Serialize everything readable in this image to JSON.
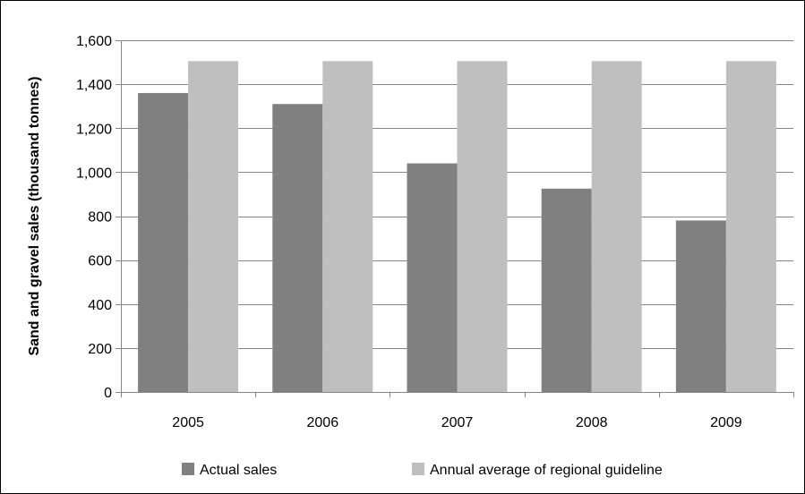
{
  "chart_data": {
    "type": "bar",
    "title": "",
    "xlabel": "",
    "ylabel": "Sand and gravel sales (thousand tonnes)",
    "categories": [
      "2005",
      "2006",
      "2007",
      "2008",
      "2009"
    ],
    "series": [
      {
        "name": "Actual sales",
        "color": "#808080",
        "values": [
          1360,
          1310,
          1040,
          925,
          780
        ]
      },
      {
        "name": "Annual average of regional guideline",
        "color": "#bfbfbf",
        "values": [
          1505,
          1505,
          1505,
          1505,
          1505
        ]
      }
    ],
    "ylim": [
      0,
      1600
    ],
    "yticks": [
      0,
      200,
      400,
      600,
      800,
      1000,
      1200,
      1400,
      1600
    ],
    "ytick_labels": [
      "0",
      "200",
      "400",
      "600",
      "800",
      "1,000",
      "1,200",
      "1,400",
      "1,600"
    ],
    "grid": true,
    "legend_position": "bottom"
  }
}
